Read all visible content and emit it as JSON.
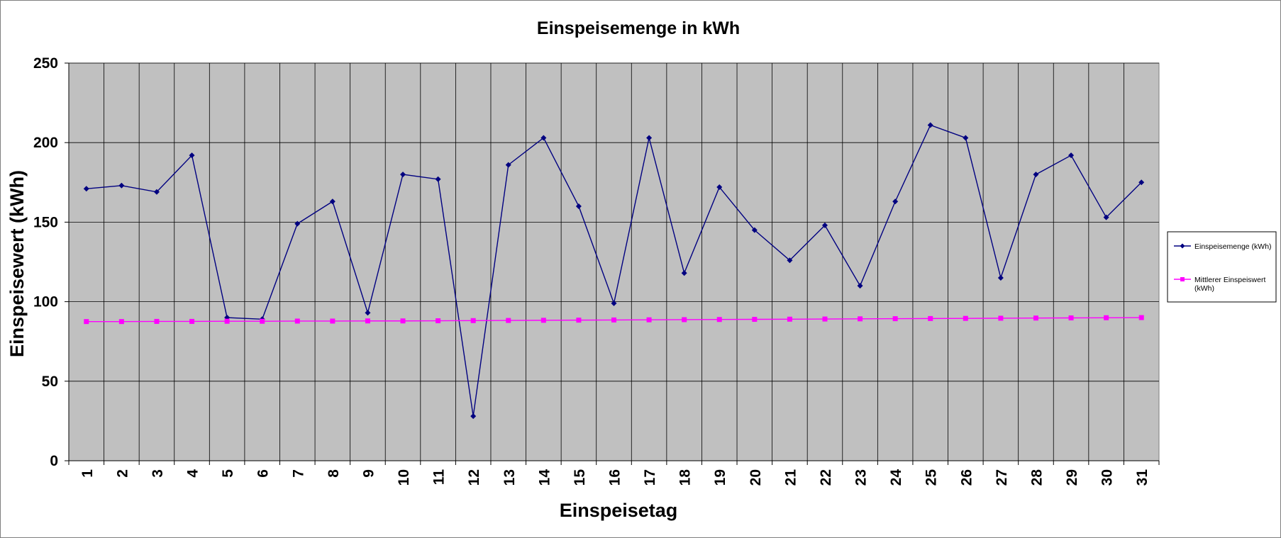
{
  "chart_data": {
    "type": "line",
    "title": "Einspeisemenge in kWh",
    "xlabel": "Einspeisetag",
    "ylabel": "Einspeisewert  (kWh)",
    "ylim": [
      0,
      250
    ],
    "yticks": [
      0,
      50,
      100,
      150,
      200,
      250
    ],
    "categories": [
      "1",
      "2",
      "3",
      "4",
      "5",
      "6",
      "7",
      "8",
      "9",
      "10",
      "11",
      "12",
      "13",
      "14",
      "15",
      "16",
      "17",
      "18",
      "19",
      "20",
      "21",
      "22",
      "23",
      "24",
      "25",
      "26",
      "27",
      "28",
      "29",
      "30",
      "31"
    ],
    "grid": true,
    "legend_position": "right",
    "series": [
      {
        "name": "Einspeisemenge (kWh)",
        "color": "#000080",
        "marker": "diamond",
        "values": [
          171,
          173,
          169,
          192,
          90,
          89,
          149,
          163,
          93,
          180,
          177,
          28,
          186,
          203,
          160,
          99,
          203,
          118,
          172,
          145,
          126,
          148,
          110,
          163,
          211,
          203,
          115,
          180,
          192,
          153,
          175
        ]
      },
      {
        "name": "Mittlerer Einspeiswert (kWh)",
        "legend_lines": [
          "Mittlerer Einspeiswert",
          "(kWh)"
        ],
        "color": "#FF00FF",
        "marker": "square",
        "values": [
          87.5,
          87.5,
          87.6,
          87.6,
          87.7,
          87.7,
          87.8,
          87.8,
          87.9,
          87.9,
          88.0,
          88.1,
          88.2,
          88.3,
          88.4,
          88.5,
          88.6,
          88.7,
          88.8,
          88.9,
          89.0,
          89.1,
          89.2,
          89.3,
          89.4,
          89.5,
          89.6,
          89.7,
          89.8,
          89.9,
          90.0
        ]
      }
    ]
  }
}
